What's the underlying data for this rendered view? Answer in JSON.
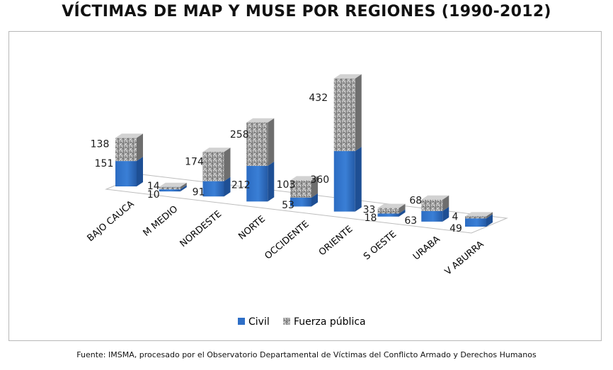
{
  "chart_data": {
    "type": "bar",
    "stacked": true,
    "title": "VÍCTIMAS  DE MAP Y MUSE POR REGIONES (1990-2012)",
    "categories": [
      "BAJO CAUCA",
      "M MEDIO",
      "NORDESTE",
      "NORTE",
      "OCCIDENTE",
      "ORIENTE",
      "S OESTE",
      "URABA",
      "V ABURRA"
    ],
    "series": [
      {
        "name": "Civil",
        "values": [
          151,
          10,
          91,
          212,
          53,
          360,
          18,
          63,
          49
        ],
        "color": "#2e6fc7"
      },
      {
        "name": "Fuerza pública",
        "values": [
          138,
          14,
          174,
          258,
          103,
          432,
          33,
          68,
          4
        ],
        "color": "#8c8c8c"
      }
    ],
    "legend": "bottom",
    "grid": false,
    "source": "Fuente: IMSMA, procesado por el Observatorio Departamental de Víctimas del Conflicto Armado y Derechos Humanos"
  }
}
